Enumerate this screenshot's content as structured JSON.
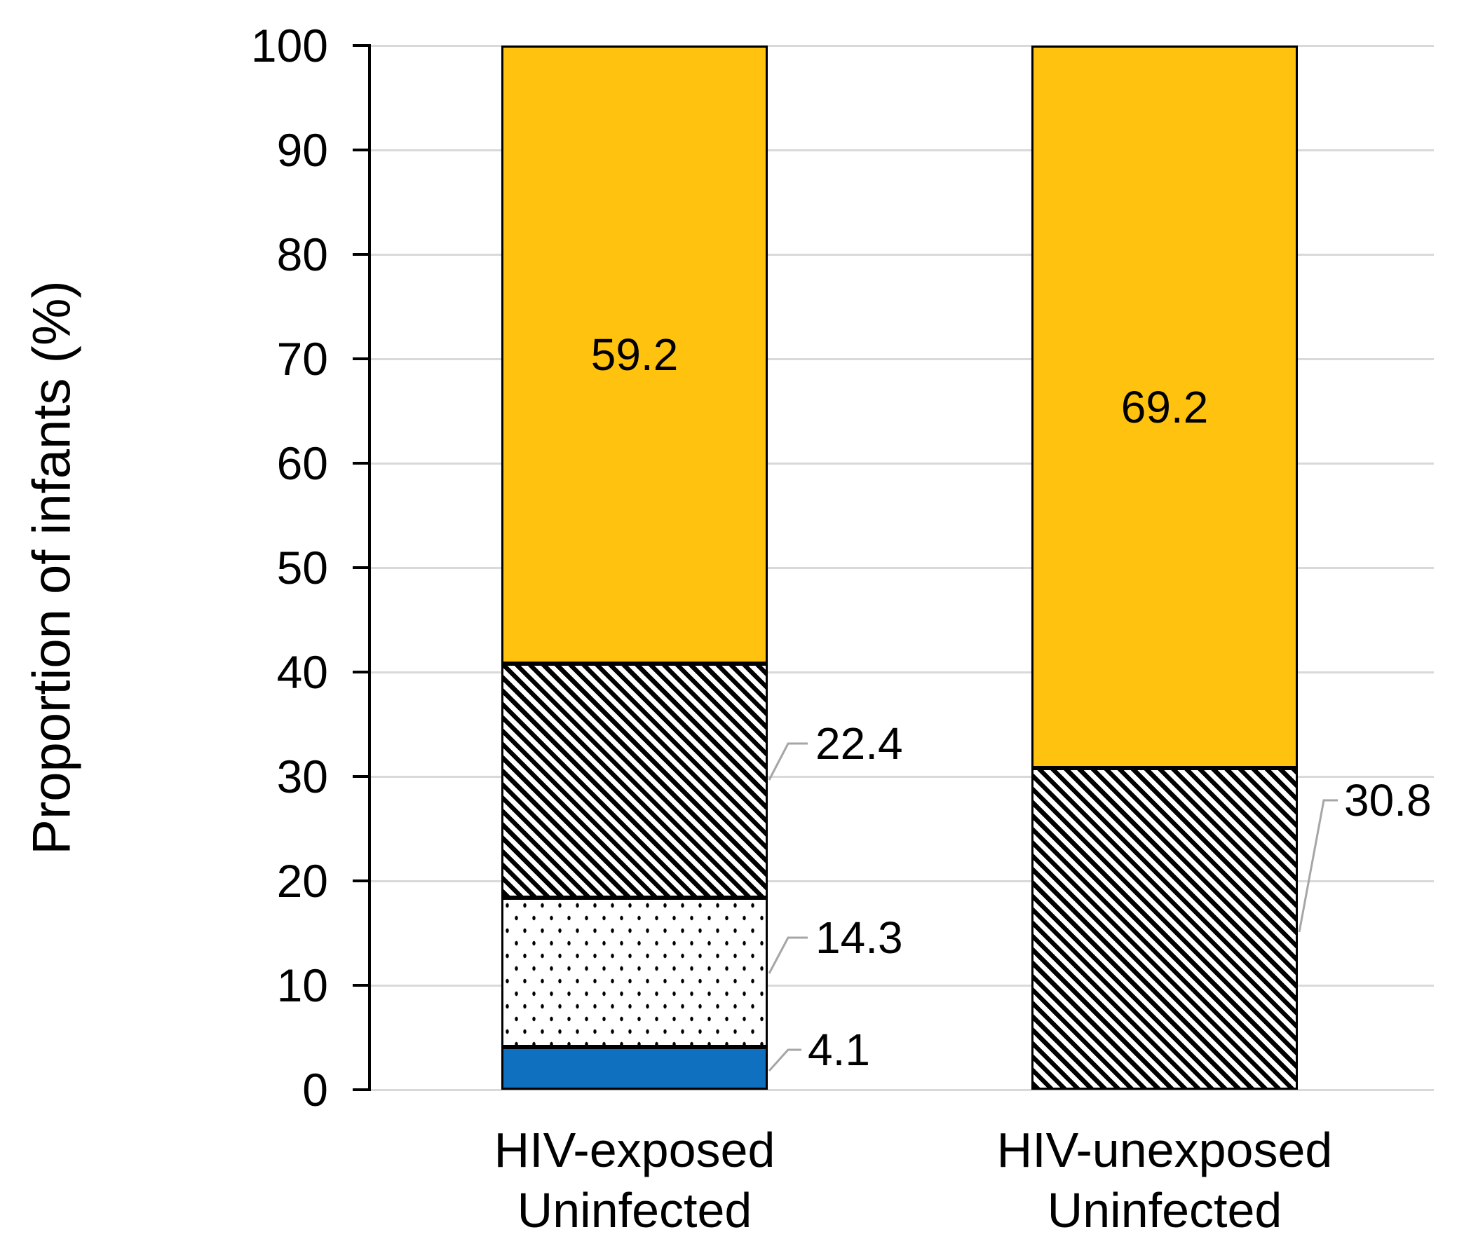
{
  "chart_data": {
    "type": "bar",
    "stacked": true,
    "orientation": "vertical",
    "ylabel": "Proportion of infants (%)",
    "ylim": [
      0,
      100
    ],
    "y_ticks": [
      0,
      10,
      20,
      30,
      40,
      50,
      60,
      70,
      80,
      90,
      100
    ],
    "grid": true,
    "legend": "none",
    "categories": [
      [
        "HIV-exposed",
        "Uninfected"
      ],
      [
        "HIV-unexposed",
        "Uninfected"
      ]
    ],
    "series": [
      {
        "name": "blue-solid",
        "pattern": "solid-blue",
        "values": [
          4.1,
          0
        ]
      },
      {
        "name": "dotted",
        "pattern": "dots",
        "values": [
          14.3,
          0
        ]
      },
      {
        "name": "diagonal-hatch",
        "pattern": "diagonal-stripes",
        "values": [
          22.4,
          30.8
        ]
      },
      {
        "name": "yellow-solid",
        "pattern": "solid-yellow",
        "values": [
          59.2,
          69.2
        ]
      }
    ],
    "data_labels": {
      "inside": [
        {
          "text": "59.2",
          "series": "yellow-solid",
          "category": 0
        },
        {
          "text": "69.2",
          "series": "yellow-solid",
          "category": 1
        }
      ],
      "outside": [
        {
          "id": "hatch-bar1",
          "text": "22.4",
          "series": "diagonal-hatch",
          "category": 0
        },
        {
          "id": "dots-bar1",
          "text": "14.3",
          "series": "dotted",
          "category": 0
        },
        {
          "id": "blue-bar1",
          "text": "4.1",
          "series": "blue-solid",
          "category": 0
        },
        {
          "id": "hatch-bar2",
          "text": "30.8",
          "series": "diagonal-hatch",
          "category": 1
        }
      ]
    }
  },
  "colors": {
    "yellow": "#FFC20E",
    "blue": "#0F70C0",
    "pattern_ink": "#000000",
    "gridline": "#D9D9D9",
    "axis": "#000000",
    "leader": "#A6A6A6",
    "text": "#000000",
    "background": "#FFFFFF"
  }
}
